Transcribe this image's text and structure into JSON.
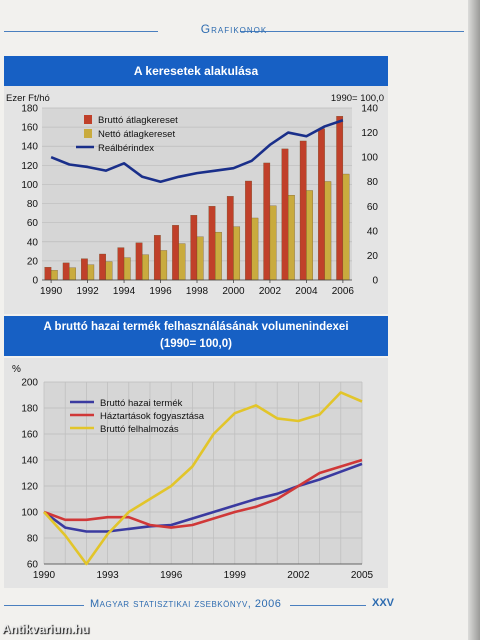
{
  "header": {
    "title": "Grafikonok"
  },
  "footer": {
    "title": "Magyar statisztikai zsebkönyv, 2006",
    "page": "XXV"
  },
  "watermark": "Antikvarium.hu",
  "chart_data": [
    {
      "type": "bar",
      "title": "A keresetek alakulása",
      "left_unit": "Ezer Ft/hó",
      "right_unit": "1990= 100,0",
      "ylim_left": [
        0,
        180
      ],
      "ylim_right": [
        0,
        140
      ],
      "left_ticks": [
        0,
        20,
        40,
        60,
        80,
        100,
        120,
        140,
        160,
        180
      ],
      "right_ticks": [
        0,
        20,
        40,
        60,
        80,
        100,
        120,
        140
      ],
      "x_tick_labels": [
        "1990",
        "1992",
        "1994",
        "1996",
        "1998",
        "2000",
        "2002",
        "2004",
        "2006"
      ],
      "x": [
        1990,
        1991,
        1992,
        1993,
        1994,
        1995,
        1996,
        1997,
        1998,
        1999,
        2000,
        2001,
        2002,
        2003,
        2004,
        2005,
        2006
      ],
      "grid": true,
      "legend": "top-left",
      "series": [
        {
          "name": "Bruttó átlagkereset",
          "color": "#c0402a",
          "axis": "left",
          "type": "bar",
          "values": [
            13.4,
            17.9,
            22.3,
            27.2,
            33.9,
            38.9,
            46.8,
            57.3,
            67.8,
            77.2,
            87.6,
            103.6,
            122.5,
            137.2,
            145.5,
            158.3,
            171.4
          ]
        },
        {
          "name": "Nettó átlagkereset",
          "color": "#c9ab3e",
          "axis": "left",
          "type": "bar",
          "values": [
            10.1,
            12.9,
            16.0,
            19.3,
            23.4,
            26.5,
            30.9,
            38.1,
            45.2,
            50.1,
            55.8,
            64.9,
            77.6,
            88.8,
            93.7,
            103.1,
            110.9
          ]
        },
        {
          "name": "Reálbérindex",
          "color": "#1a2f8a",
          "axis": "right",
          "type": "line",
          "values": [
            100,
            94,
            92,
            89,
            95,
            84,
            80,
            84,
            87,
            89,
            91,
            97,
            110,
            120,
            117,
            125,
            130
          ]
        }
      ]
    },
    {
      "type": "line",
      "title": "A bruttó hazai termék felhasználásának volumenindexei",
      "subtitle": "(1990= 100,0)",
      "ylabel": "%",
      "ylim": [
        60,
        200
      ],
      "y_ticks": [
        60,
        80,
        100,
        120,
        140,
        160,
        180,
        200
      ],
      "x_tick_labels": [
        "1990",
        "1993",
        "1996",
        "1999",
        "2002",
        "2005"
      ],
      "x": [
        1990,
        1991,
        1992,
        1993,
        1994,
        1995,
        1996,
        1997,
        1998,
        1999,
        2000,
        2001,
        2002,
        2003,
        2004,
        2005
      ],
      "grid": true,
      "legend": "top-left",
      "series": [
        {
          "name": "Bruttó hazai termék",
          "color": "#3a3aa0",
          "values": [
            100,
            88,
            85,
            85,
            87,
            89,
            90,
            95,
            100,
            105,
            110,
            114,
            120,
            125,
            131,
            137
          ]
        },
        {
          "name": "Háztartások fogyasztása",
          "color": "#d03838",
          "values": [
            100,
            94,
            94,
            96,
            96,
            90,
            88,
            90,
            95,
            100,
            104,
            110,
            120,
            130,
            135,
            140
          ]
        },
        {
          "name": "Bruttó felhalmozás",
          "color": "#e2c52a",
          "values": [
            100,
            82,
            60,
            83,
            100,
            110,
            120,
            135,
            160,
            176,
            182,
            172,
            170,
            175,
            192,
            185
          ]
        }
      ]
    }
  ]
}
